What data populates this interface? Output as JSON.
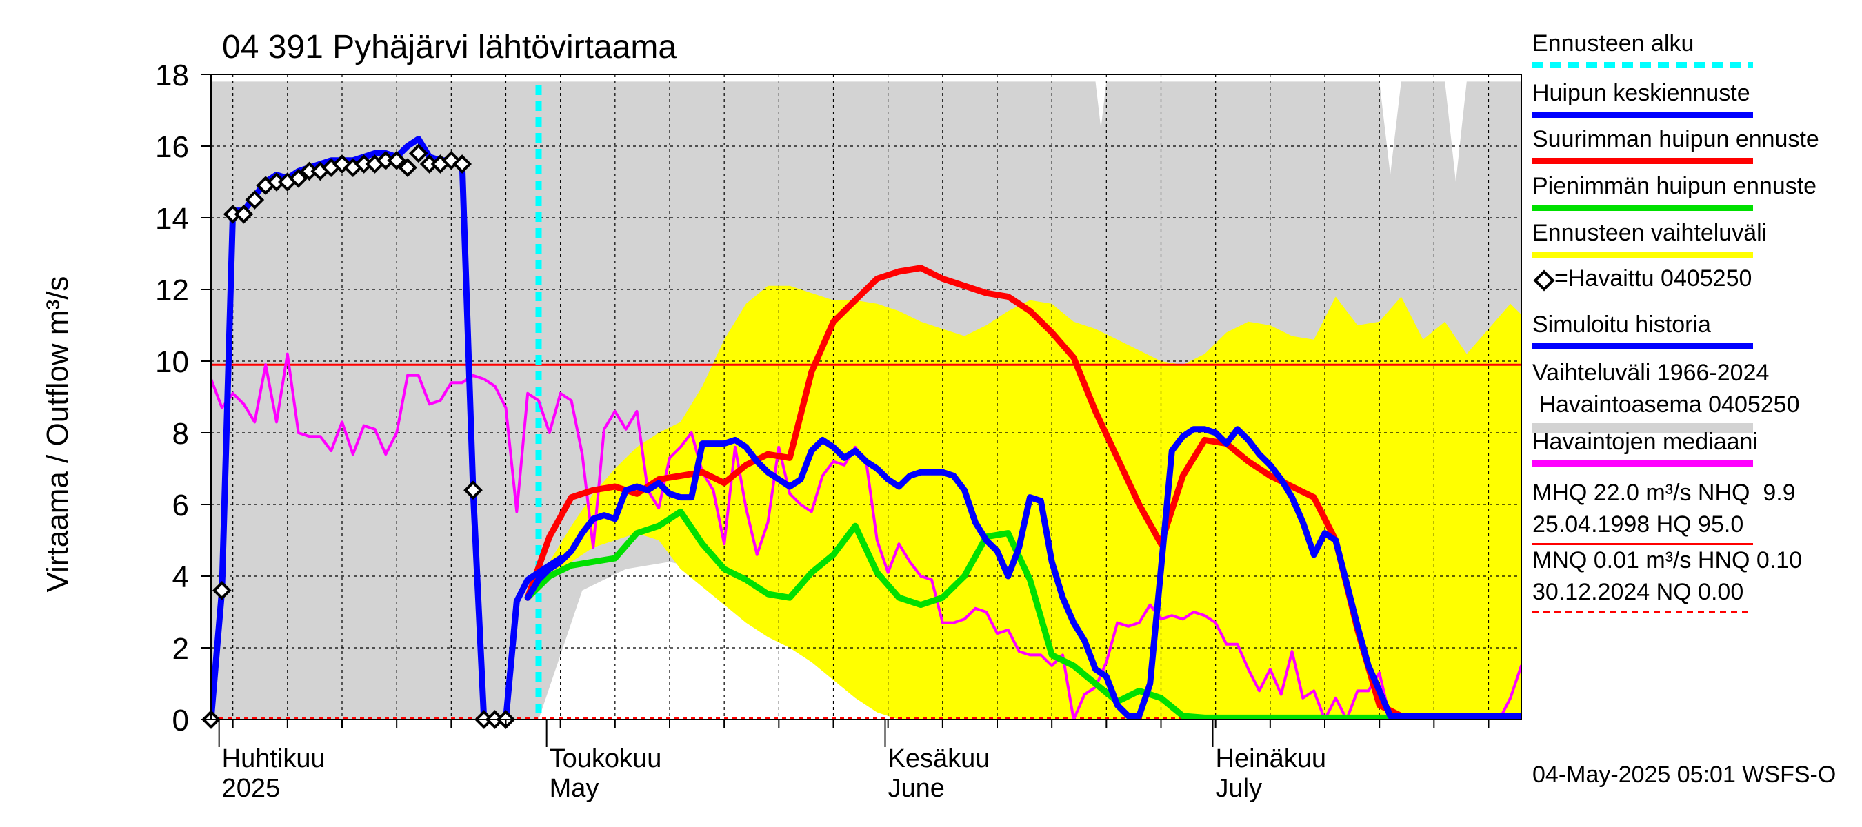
{
  "chart_data": {
    "type": "line",
    "title": "04 391 Pyhäjärvi lähtövirtaama",
    "ylabel": "Virtaama / Outflow    m³/s",
    "ylim": [
      0,
      18
    ],
    "yticks": [
      0,
      2,
      4,
      6,
      8,
      10,
      12,
      14,
      16,
      18
    ],
    "x_unit": "days since 2025-03-30",
    "xlim": [
      0,
      120
    ],
    "month_labels": [
      {
        "fi": "Huhtikuu",
        "en": "2025",
        "day": 2
      },
      {
        "fi": "Toukokuu",
        "en": "May",
        "day": 32
      },
      {
        "fi": "Kesäkuu",
        "en": "June",
        "day": 63
      },
      {
        "fi": "Heinäkuu",
        "en": "July",
        "day": 93
      }
    ],
    "forecast_start_day": 30,
    "reference_lines": {
      "NHQ": 9.9,
      "NQ": 0.0
    },
    "colors": {
      "history_band": "#d3d3d3",
      "forecast_band": "#ffff00",
      "median": "#ff00ff",
      "simulated": "#0000ff",
      "max_peak": "#ff0000",
      "min_peak": "#00e000",
      "forecast_start": "#00ffff",
      "ref": "#ff0000"
    },
    "series": [
      {
        "name": "Vaihteluväli 1966-2024 (upper)",
        "x": [
          0,
          2,
          4,
          6,
          8,
          10,
          12,
          14,
          16,
          18,
          20,
          22,
          24,
          26,
          28,
          30,
          32,
          34,
          36,
          38,
          40,
          42,
          44,
          46,
          48,
          50,
          52,
          54,
          56,
          58,
          60,
          62,
          64,
          66,
          68,
          70,
          72,
          74,
          76,
          78,
          80,
          81,
          81.5,
          82,
          84,
          86,
          88,
          90,
          92,
          94,
          96,
          98,
          100,
          102,
          104,
          106,
          107,
          108,
          109,
          110,
          112,
          113,
          114,
          115,
          116,
          118,
          120
        ],
        "y": [
          17.8,
          17.8,
          17.8,
          17.8,
          17.8,
          17.8,
          17.8,
          17.8,
          17.8,
          17.8,
          17.8,
          17.8,
          17.8,
          17.8,
          17.8,
          17.8,
          17.8,
          17.8,
          17.8,
          17.8,
          17.8,
          17.8,
          17.8,
          17.8,
          17.8,
          17.8,
          17.8,
          17.8,
          17.8,
          17.8,
          17.8,
          17.8,
          17.8,
          17.8,
          17.8,
          17.8,
          17.8,
          17.8,
          17.8,
          17.8,
          17.8,
          17.8,
          16.5,
          17.8,
          17.8,
          17.8,
          17.8,
          17.8,
          17.8,
          17.8,
          17.8,
          17.8,
          17.8,
          17.8,
          17.8,
          17.8,
          17.8,
          15.2,
          17.8,
          17.8,
          17.8,
          17.8,
          15.0,
          17.8,
          17.8,
          17.8,
          17.8
        ]
      },
      {
        "name": "Vaihteluväli 1966-2024 (lower)",
        "x": [
          0,
          30,
          34,
          38,
          42,
          46,
          50,
          54,
          58,
          62,
          64,
          66,
          70,
          80,
          90,
          100,
          110,
          120
        ],
        "y": [
          0,
          0,
          3.6,
          4.2,
          4.4,
          4.1,
          3.6,
          3.0,
          2.2,
          1.2,
          0.3,
          0,
          0,
          0,
          0,
          0,
          0,
          0
        ]
      },
      {
        "name": "Ennusteen vaihteluväli (upper)",
        "x": [
          29,
          31,
          33,
          35,
          37,
          39,
          41,
          43,
          45,
          47,
          49,
          51,
          53,
          55,
          57,
          59,
          61,
          63,
          65,
          67,
          69,
          71,
          73,
          75,
          77,
          79,
          81,
          83,
          85,
          87,
          89,
          91,
          93,
          95,
          97,
          99,
          101,
          103,
          105,
          107,
          109,
          111,
          113,
          115,
          117,
          119,
          120
        ],
        "y": [
          3.8,
          4.4,
          5.4,
          6.3,
          7.0,
          7.6,
          8.0,
          8.3,
          9.3,
          10.6,
          11.6,
          12.1,
          12.1,
          11.9,
          11.7,
          11.7,
          11.6,
          11.4,
          11.1,
          10.9,
          10.7,
          11.0,
          11.4,
          11.7,
          11.6,
          11.1,
          10.9,
          10.6,
          10.3,
          10.0,
          9.9,
          10.2,
          10.8,
          11.1,
          11.0,
          10.7,
          10.6,
          11.8,
          11.0,
          11.1,
          11.8,
          10.6,
          11.1,
          10.2,
          10.9,
          11.6,
          11.3
        ]
      },
      {
        "name": "Ennusteen vaihteluväli (lower)",
        "x": [
          29,
          31,
          33,
          35,
          37,
          39,
          41,
          43,
          45,
          47,
          49,
          51,
          53,
          55,
          57,
          59,
          61,
          63,
          65,
          67,
          69,
          71,
          73,
          75,
          120
        ],
        "y": [
          3.8,
          4.1,
          4.4,
          4.8,
          5.0,
          5.2,
          5.0,
          4.2,
          3.7,
          3.2,
          2.7,
          2.3,
          2.0,
          1.6,
          1.1,
          0.6,
          0.2,
          0,
          0,
          0,
          0,
          0,
          0,
          0,
          0
        ]
      },
      {
        "name": "Havaintojen mediaani",
        "x": [
          0,
          1,
          2,
          3,
          4,
          5,
          6,
          7,
          8,
          9,
          10,
          11,
          12,
          13,
          14,
          15,
          16,
          17,
          18,
          19,
          20,
          21,
          22,
          23,
          24,
          25,
          26,
          27,
          28,
          29,
          30,
          31,
          32,
          33,
          34,
          35,
          36,
          37,
          38,
          39,
          40,
          41,
          42,
          43,
          44,
          45,
          46,
          47,
          48,
          49,
          50,
          51,
          52,
          53,
          54,
          55,
          56,
          57,
          58,
          59,
          60,
          61,
          62,
          63,
          64,
          65,
          66,
          67,
          68,
          69,
          70,
          71,
          72,
          73,
          74,
          75,
          76,
          77,
          78,
          79,
          80,
          81,
          82,
          83,
          84,
          85,
          86,
          87,
          88,
          89,
          90,
          91,
          92,
          93,
          94,
          95,
          96,
          97,
          98,
          99,
          100,
          101,
          102,
          103,
          104,
          105,
          106,
          107,
          108,
          109,
          110,
          111,
          112,
          113,
          114,
          115,
          116,
          117,
          118,
          119,
          120
        ],
        "y": [
          9.5,
          8.7,
          9.1,
          8.8,
          8.3,
          9.9,
          8.3,
          10.2,
          8.0,
          7.9,
          7.9,
          7.5,
          8.3,
          7.4,
          8.2,
          8.1,
          7.4,
          8.0,
          9.6,
          9.6,
          8.8,
          8.9,
          9.4,
          9.4,
          9.6,
          9.5,
          9.3,
          8.7,
          5.8,
          9.1,
          8.9,
          8.0,
          9.1,
          8.9,
          7.4,
          4.8,
          8.1,
          8.6,
          8.1,
          8.6,
          6.4,
          5.9,
          7.3,
          7.6,
          8.0,
          6.9,
          6.4,
          4.9,
          7.6,
          5.9,
          4.6,
          5.5,
          7.6,
          6.3,
          6.0,
          5.8,
          6.8,
          7.2,
          7.1,
          7.6,
          7.2,
          5.0,
          4.1,
          4.9,
          4.4,
          4.0,
          3.9,
          2.7,
          2.7,
          2.8,
          3.1,
          3.0,
          2.4,
          2.5,
          1.9,
          1.8,
          1.8,
          1.5,
          1.8,
          0.0,
          0.7,
          0.9,
          1.6,
          2.7,
          2.6,
          2.7,
          3.2,
          2.8,
          2.9,
          2.8,
          3.0,
          2.9,
          2.7,
          2.1,
          2.1,
          1.4,
          0.8,
          1.4,
          0.7,
          1.9,
          0.6,
          0.8,
          0.0,
          0.6,
          0.0,
          0.8,
          0.8,
          1.3,
          0.0,
          0.0,
          0.0,
          0.0,
          0.0,
          0.0,
          0.0,
          0.0,
          0.0,
          0.0,
          0.0,
          0.6,
          1.5
        ]
      },
      {
        "name": "Simuloitu historia",
        "x": [
          0,
          1,
          2,
          3,
          4,
          5,
          6,
          7,
          8,
          9,
          10,
          11,
          12,
          13,
          14,
          15,
          16,
          17,
          18,
          19,
          20,
          21,
          22,
          23,
          24,
          25,
          26,
          27,
          28,
          29,
          30,
          31,
          32
        ],
        "y": [
          0,
          3.6,
          14.2,
          14.2,
          14.6,
          15.0,
          15.2,
          15.1,
          15.3,
          15.4,
          15.5,
          15.6,
          15.6,
          15.6,
          15.7,
          15.8,
          15.8,
          15.7,
          16.0,
          16.2,
          15.7,
          15.6,
          15.6,
          15.5,
          6.4,
          0,
          0,
          0,
          3.3,
          3.9,
          4.1,
          4.3,
          4.5
        ]
      },
      {
        "name": "Huipun keskiennuste",
        "x": [
          29,
          30,
          31,
          32,
          33,
          34,
          35,
          36,
          37,
          38,
          39,
          40,
          41,
          42,
          43,
          44,
          45,
          46,
          47,
          48,
          49,
          50,
          51,
          52,
          53,
          54,
          55,
          56,
          57,
          58,
          59,
          60,
          61,
          62,
          63,
          64,
          65,
          66,
          67,
          68,
          69,
          70,
          71,
          72,
          73,
          74,
          75,
          76,
          77,
          78,
          79,
          80,
          81,
          82,
          83,
          84,
          85,
          86,
          87,
          88,
          89,
          90,
          91,
          92,
          93,
          94,
          95,
          96,
          97,
          98,
          99,
          100,
          101,
          102,
          103,
          104,
          105,
          106,
          107,
          108,
          109,
          110,
          111,
          112,
          113,
          114,
          115,
          116,
          117,
          118,
          119,
          120
        ],
        "y": [
          3.4,
          3.9,
          4.2,
          4.4,
          4.7,
          5.2,
          5.6,
          5.7,
          5.6,
          6.4,
          6.5,
          6.4,
          6.6,
          6.3,
          6.2,
          6.2,
          7.7,
          7.7,
          7.7,
          7.8,
          7.6,
          7.2,
          6.9,
          6.7,
          6.5,
          6.7,
          7.5,
          7.8,
          7.6,
          7.3,
          7.5,
          7.2,
          7.0,
          6.7,
          6.5,
          6.8,
          6.9,
          6.9,
          6.9,
          6.8,
          6.4,
          5.5,
          5.0,
          4.7,
          4.0,
          4.8,
          6.2,
          6.1,
          4.4,
          3.4,
          2.7,
          2.2,
          1.4,
          1.2,
          0.4,
          0.1,
          0.1,
          1.0,
          4.2,
          7.5,
          7.9,
          8.1,
          8.1,
          8.0,
          7.7,
          8.1,
          7.8,
          7.4,
          7.1,
          6.7,
          6.2,
          5.5,
          4.6,
          5.2,
          5.0,
          3.8,
          2.6,
          1.5,
          0.8,
          0.1,
          0.1,
          0.1,
          0.1,
          0.1,
          0.1,
          0.1,
          0.1,
          0.1,
          0.1,
          0.1,
          0.1,
          0.1
        ]
      },
      {
        "name": "Suurimman huipun ennuste",
        "x": [
          29,
          31,
          33,
          35,
          37,
          39,
          41,
          43,
          45,
          47,
          49,
          51,
          53,
          55,
          57,
          59,
          61,
          63,
          65,
          67,
          69,
          71,
          73,
          75,
          77,
          79,
          81,
          83,
          85,
          87,
          89,
          91,
          93,
          95,
          97,
          99,
          101,
          103,
          105,
          107,
          109,
          111,
          113,
          115,
          117,
          119,
          120
        ],
        "y": [
          3.4,
          5.1,
          6.2,
          6.4,
          6.5,
          6.3,
          6.7,
          6.8,
          6.9,
          6.6,
          7.1,
          7.4,
          7.3,
          9.7,
          11.1,
          11.7,
          12.3,
          12.5,
          12.6,
          12.3,
          12.1,
          11.9,
          11.8,
          11.4,
          10.8,
          10.1,
          8.6,
          7.3,
          6.0,
          4.9,
          6.8,
          7.8,
          7.7,
          7.2,
          6.8,
          6.5,
          6.2,
          5.0,
          2.5,
          0.4,
          0.1,
          0.1,
          0.1,
          0.1,
          0.1,
          0.1,
          0.1
        ]
      },
      {
        "name": "Pienimmän huipun ennuste",
        "x": [
          29,
          31,
          33,
          35,
          37,
          39,
          41,
          43,
          45,
          47,
          49,
          51,
          53,
          55,
          57,
          59,
          61,
          63,
          65,
          67,
          69,
          71,
          73,
          75,
          77,
          79,
          81,
          83,
          85,
          87,
          89,
          91,
          93,
          95,
          97,
          99,
          101,
          103,
          105,
          107,
          109,
          111,
          113,
          115,
          117,
          119,
          120
        ],
        "y": [
          3.4,
          4.0,
          4.3,
          4.4,
          4.5,
          5.2,
          5.4,
          5.8,
          4.9,
          4.2,
          3.9,
          3.5,
          3.4,
          4.1,
          4.6,
          5.4,
          4.1,
          3.4,
          3.2,
          3.4,
          4.0,
          5.1,
          5.2,
          3.9,
          1.8,
          1.5,
          1.0,
          0.5,
          0.8,
          0.6,
          0.1,
          0.05,
          0.05,
          0.05,
          0.05,
          0.05,
          0.05,
          0.05,
          0.05,
          0.05,
          0.05,
          0.05,
          0.05,
          0.05,
          0.05,
          0.05,
          0.05
        ]
      }
    ],
    "observed": {
      "name": "=Havaittu 0405250",
      "x": [
        0,
        1,
        2,
        3,
        4,
        5,
        6,
        7,
        8,
        9,
        10,
        11,
        12,
        13,
        14,
        15,
        16,
        17,
        18,
        19,
        20,
        21,
        22,
        23,
        24,
        25,
        26,
        27
      ],
      "y": [
        0,
        3.6,
        14.1,
        14.1,
        14.5,
        14.9,
        15.0,
        15.0,
        15.1,
        15.3,
        15.3,
        15.4,
        15.5,
        15.4,
        15.5,
        15.5,
        15.6,
        15.6,
        15.4,
        15.8,
        15.5,
        15.5,
        15.6,
        15.5,
        6.4,
        0,
        0,
        0
      ]
    },
    "legend": [
      {
        "label": "Ennusteen alku",
        "color": "#00ffff",
        "style": "dotted"
      },
      {
        "label": "Huipun keskiennuste",
        "color": "#0000ff",
        "style": "solid"
      },
      {
        "label": "Suurimman huipun ennuste",
        "color": "#ff0000",
        "style": "solid"
      },
      {
        "label": "Pienimmän huipun ennuste",
        "color": "#00e000",
        "style": "solid"
      },
      {
        "label": "Ennusteen vaihteluväli",
        "color": "#ffff00",
        "style": "solid"
      },
      {
        "label": "=Havaittu 0405250",
        "color": "#000000",
        "style": "marker"
      },
      {
        "label": "Simuloitu historia",
        "color": "#0000ff",
        "style": "solid"
      },
      {
        "label": "Vaihteluväli 1966-2024\n Havaintoasema 0405250",
        "color": "#d3d3d3",
        "style": "band"
      },
      {
        "label": "Havaintojen mediaani",
        "color": "#ff00ff",
        "style": "solid"
      },
      {
        "label": "MHQ 22.0 m³/s NHQ  9.9\n25.04.1998 HQ 95.0",
        "color": "#ff0000",
        "style": "thin"
      },
      {
        "label": "MNQ 0.01 m³/s HNQ 0.10\n30.12.2024 NQ 0.00",
        "color": "#ff0000",
        "style": "dashed"
      }
    ],
    "footer": "04-May-2025 05:01 WSFS-O"
  }
}
